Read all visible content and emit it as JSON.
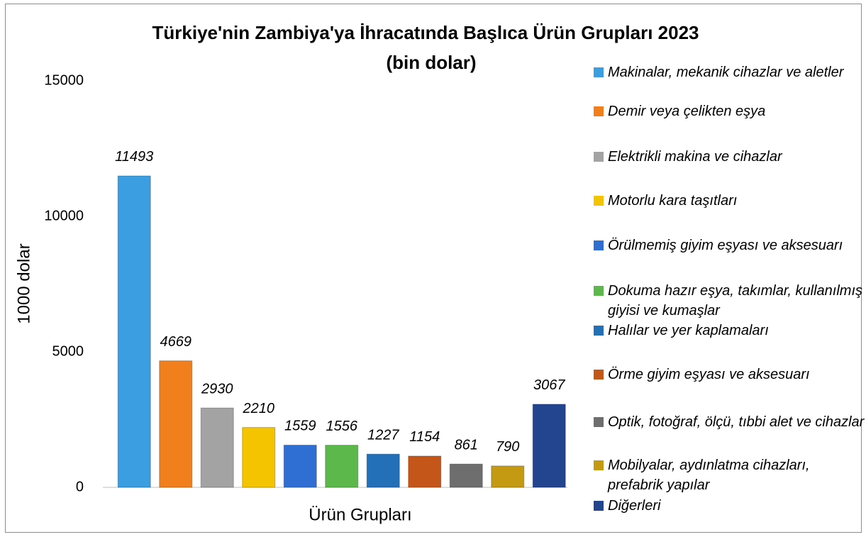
{
  "chart_data": {
    "type": "bar",
    "title": "Türkiye'nin Zambiya'ya İhracatında Başlıca Ürün Grupları 2023",
    "subtitle": "(bin dolar)",
    "x_label": "Ürün Grupları",
    "y_label": "1000 dolar",
    "categories": [
      "Makinalar, mekanik cihazlar ve aletler",
      "Demir veya çelikten eşya",
      "Elektrikli makina ve cihazlar",
      "Motorlu kara taşıtları",
      "Örülmemiş giyim eşyası ve aksesuarı",
      "Dokuma hazır eşya, takımlar, kullanılmış giyisi ve kumaşlar",
      "Halılar ve yer kaplamaları",
      "Örme giyim eşyası ve aksesuarı",
      "Optik, fotoğraf, ölçü, tıbbi alet ve cihazlar",
      "Mobilyalar, aydınlatma cihazları, prefabrik yapılar",
      "Diğerleri"
    ],
    "values": [
      11493,
      4669,
      2930,
      2210,
      1559,
      1556,
      1227,
      1154,
      861,
      790,
      3067
    ],
    "colors": [
      "#3a9ee0",
      "#f07f1c",
      "#a3a3a3",
      "#f5c400",
      "#2f6fd4",
      "#5cb84a",
      "#2470b8",
      "#c4561a",
      "#6e6e6e",
      "#c49a12",
      "#23458f"
    ],
    "ylim": [
      0,
      15000
    ],
    "yticks": [
      0,
      5000,
      10000,
      15000
    ],
    "grid": false,
    "legend": "right"
  }
}
